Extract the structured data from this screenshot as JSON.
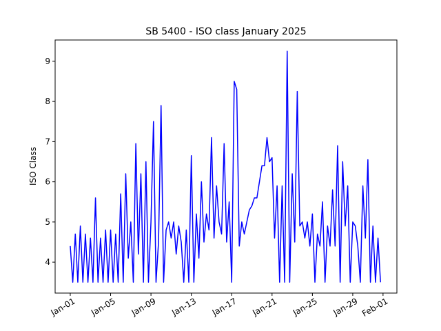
{
  "chart_data": {
    "type": "line",
    "title": "SB 5400 - ISO class January 2025",
    "ylabel": "ISO Class",
    "color": "#0000ff",
    "x": [
      "2025-01-01T00",
      "2025-01-01T06",
      "2025-01-01T12",
      "2025-01-01T18",
      "2025-01-02T00",
      "2025-01-02T06",
      "2025-01-02T12",
      "2025-01-02T18",
      "2025-01-03T00",
      "2025-01-03T06",
      "2025-01-03T12",
      "2025-01-03T18",
      "2025-01-04T00",
      "2025-01-04T06",
      "2025-01-04T12",
      "2025-01-04T18",
      "2025-01-05T00",
      "2025-01-05T06",
      "2025-01-05T12",
      "2025-01-05T18",
      "2025-01-06T00",
      "2025-01-06T06",
      "2025-01-06T12",
      "2025-01-06T18",
      "2025-01-07T00",
      "2025-01-07T06",
      "2025-01-07T12",
      "2025-01-07T18",
      "2025-01-08T00",
      "2025-01-08T06",
      "2025-01-08T12",
      "2025-01-08T18",
      "2025-01-09T00",
      "2025-01-09T06",
      "2025-01-09T12",
      "2025-01-09T18",
      "2025-01-10T00",
      "2025-01-10T06",
      "2025-01-10T12",
      "2025-01-10T18",
      "2025-01-11T00",
      "2025-01-11T06",
      "2025-01-11T12",
      "2025-01-11T18",
      "2025-01-12T00",
      "2025-01-12T06",
      "2025-01-12T12",
      "2025-01-12T18",
      "2025-01-13T00",
      "2025-01-13T06",
      "2025-01-13T12",
      "2025-01-13T18",
      "2025-01-14T00",
      "2025-01-14T06",
      "2025-01-14T12",
      "2025-01-14T18",
      "2025-01-15T00",
      "2025-01-15T06",
      "2025-01-15T12",
      "2025-01-15T18",
      "2025-01-16T00",
      "2025-01-16T06",
      "2025-01-16T12",
      "2025-01-16T18",
      "2025-01-17T00",
      "2025-01-17T06",
      "2025-01-17T12",
      "2025-01-17T18",
      "2025-01-18T00",
      "2025-01-18T06",
      "2025-01-18T12",
      "2025-01-18T18",
      "2025-01-19T00",
      "2025-01-19T06",
      "2025-01-19T12",
      "2025-01-19T18",
      "2025-01-20T00",
      "2025-01-20T06",
      "2025-01-20T12",
      "2025-01-20T18",
      "2025-01-21T00",
      "2025-01-21T06",
      "2025-01-21T12",
      "2025-01-21T18",
      "2025-01-22T00",
      "2025-01-22T06",
      "2025-01-22T12",
      "2025-01-22T18",
      "2025-01-23T00",
      "2025-01-23T06",
      "2025-01-23T12",
      "2025-01-23T18",
      "2025-01-24T00",
      "2025-01-24T06",
      "2025-01-24T12",
      "2025-01-24T18",
      "2025-01-25T00",
      "2025-01-25T06",
      "2025-01-25T12",
      "2025-01-25T18",
      "2025-01-26T00",
      "2025-01-26T06",
      "2025-01-26T12",
      "2025-01-26T18",
      "2025-01-27T00",
      "2025-01-27T06",
      "2025-01-27T12",
      "2025-01-27T18",
      "2025-01-28T00",
      "2025-01-28T06",
      "2025-01-28T12",
      "2025-01-28T18",
      "2025-01-29T00",
      "2025-01-29T06",
      "2025-01-29T12",
      "2025-01-29T18",
      "2025-01-30T00",
      "2025-01-30T06",
      "2025-01-30T12",
      "2025-01-30T18",
      "2025-01-31T00",
      "2025-01-31T06",
      "2025-01-31T12",
      "2025-01-31T18"
    ],
    "values": [
      4.4,
      3.5,
      4.7,
      3.5,
      4.9,
      3.5,
      4.7,
      3.5,
      4.6,
      3.5,
      5.6,
      3.5,
      4.6,
      3.5,
      4.8,
      3.5,
      4.8,
      3.5,
      4.7,
      3.5,
      5.7,
      3.5,
      6.2,
      4.1,
      5.0,
      3.5,
      6.95,
      4.2,
      6.2,
      3.5,
      6.5,
      3.5,
      5.0,
      7.5,
      3.5,
      4.5,
      7.9,
      3.5,
      4.8,
      5.0,
      4.6,
      5.0,
      4.2,
      4.9,
      4.5,
      3.5,
      4.8,
      3.5,
      6.65,
      3.5,
      5.2,
      4.1,
      6.0,
      4.5,
      5.2,
      4.8,
      7.1,
      4.6,
      5.9,
      5.0,
      4.7,
      6.95,
      4.5,
      5.5,
      3.5,
      8.5,
      8.3,
      4.4,
      5.0,
      4.7,
      5.0,
      5.3,
      5.4,
      5.6,
      5.6,
      6.0,
      6.4,
      6.4,
      7.1,
      6.5,
      6.6,
      4.6,
      5.9,
      3.5,
      5.9,
      3.5,
      9.25,
      3.5,
      6.2,
      4.5,
      8.25,
      4.9,
      5.0,
      4.6,
      5.0,
      4.4,
      5.2,
      3.5,
      4.7,
      4.4,
      5.5,
      3.5,
      4.9,
      4.4,
      5.8,
      4.4,
      6.9,
      3.5,
      6.5,
      4.9,
      5.9,
      3.5,
      5.0,
      4.9,
      4.4,
      3.5,
      5.9,
      4.6,
      6.55,
      3.5,
      4.9,
      3.5,
      4.6,
      3.5
    ],
    "xlim": [
      "2024-12-30T12",
      "2025-02-02T09"
    ],
    "xticks": [
      {
        "value": "2025-01-01T00",
        "label": "Jan-01"
      },
      {
        "value": "2025-01-05T00",
        "label": "Jan-05"
      },
      {
        "value": "2025-01-09T00",
        "label": "Jan-09"
      },
      {
        "value": "2025-01-13T00",
        "label": "Jan-13"
      },
      {
        "value": "2025-01-17T00",
        "label": "Jan-17"
      },
      {
        "value": "2025-01-21T00",
        "label": "Jan-21"
      },
      {
        "value": "2025-01-25T00",
        "label": "Jan-25"
      },
      {
        "value": "2025-01-29T00",
        "label": "Jan-29"
      },
      {
        "value": "2025-02-01T00",
        "label": "Feb-01"
      }
    ],
    "ylim": [
      3.23,
      9.53
    ],
    "yticks": [
      4,
      5,
      6,
      7,
      8,
      9
    ],
    "grid": false
  }
}
